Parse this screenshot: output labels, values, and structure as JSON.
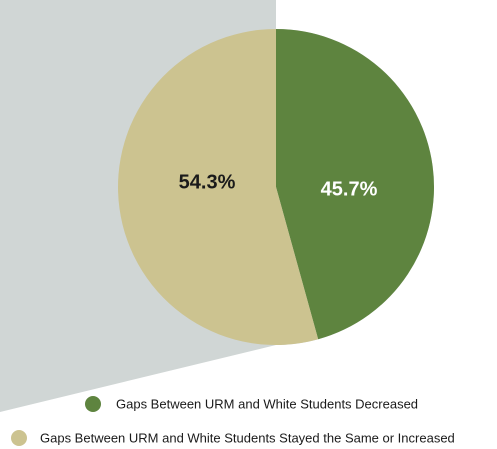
{
  "chart_data": {
    "type": "pie",
    "slices": [
      {
        "label": "Gaps Between URM and White Students Decreased",
        "value": 45.7,
        "value_label": "45.7%",
        "color": "#5e843f",
        "label_color": "#ffffff"
      },
      {
        "label": "Gaps Between URM and White Students Stayed the Same or Increased",
        "value": 54.3,
        "value_label": "54.3%",
        "color": "#ccc390",
        "label_color": "#1a1a1a"
      }
    ],
    "legend": {
      "position": "bottom"
    },
    "background_shape_color": "#d0d6d5"
  }
}
